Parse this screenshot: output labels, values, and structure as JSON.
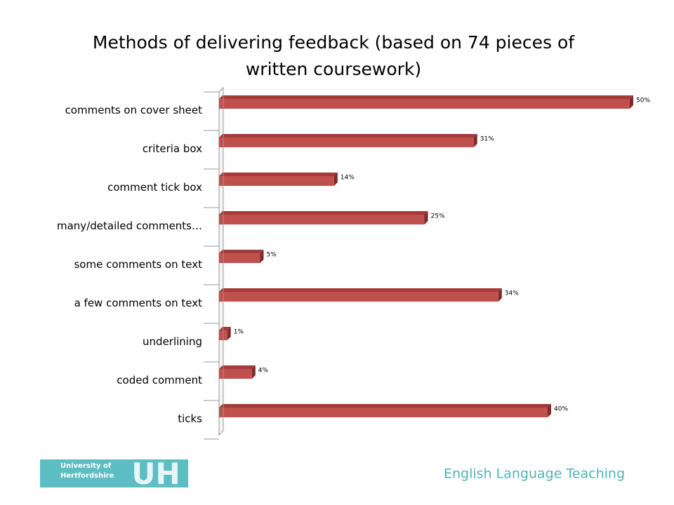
{
  "chart_data": {
    "type": "bar3d-horizontal",
    "title": "Methods of delivering feedback (based on 74 pieces of written coursework)",
    "categories": [
      "comments on cover sheet",
      "criteria box",
      "comment tick box",
      "many/detailed comments…",
      "some comments on text",
      "a few comments on text",
      "underlining",
      "coded comment",
      "ticks"
    ],
    "values": [
      50,
      31,
      14,
      25,
      5,
      34,
      1,
      4,
      40
    ],
    "value_labels": [
      "50%",
      "31%",
      "14%",
      "25%",
      "5%",
      "34%",
      "1%",
      "4%",
      "40%"
    ],
    "color": "#c0504d",
    "xlim": [
      0,
      50
    ]
  },
  "footer": {
    "logo_text": "University of Hertfordshire",
    "logo_mark": "UH",
    "text": "English Language Teaching"
  }
}
